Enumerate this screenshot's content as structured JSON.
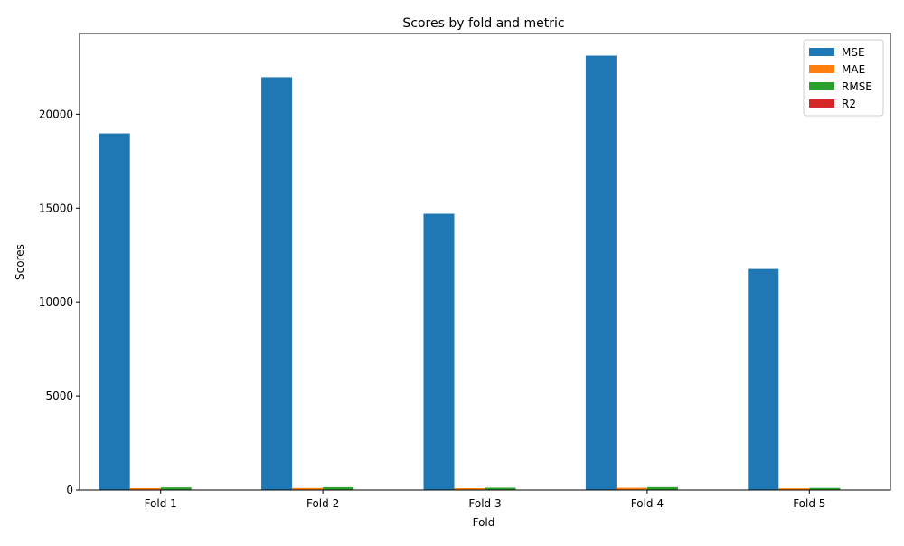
{
  "chart_data": {
    "type": "bar",
    "title": "Scores by fold and metric",
    "xlabel": "Fold",
    "ylabel": "Scores",
    "categories": [
      "Fold 1",
      "Fold 2",
      "Fold 3",
      "Fold 4",
      "Fold 5"
    ],
    "ylim": [
      0,
      24300
    ],
    "yticks": [
      0,
      5000,
      10000,
      15000,
      20000
    ],
    "legend_position": "top-right",
    "grid": false,
    "series": [
      {
        "name": "MSE",
        "color": "#1f77b4",
        "values": [
          18980,
          21970,
          14700,
          23120,
          11760
        ]
      },
      {
        "name": "MAE",
        "color": "#ff7f0e",
        "values": [
          100,
          105,
          95,
          115,
          90
        ]
      },
      {
        "name": "RMSE",
        "color": "#2ca02c",
        "values": [
          138,
          148,
          121,
          152,
          108
        ]
      },
      {
        "name": "R2",
        "color": "#d62728",
        "values": [
          0.6,
          0.55,
          0.65,
          0.5,
          0.7
        ]
      }
    ]
  }
}
